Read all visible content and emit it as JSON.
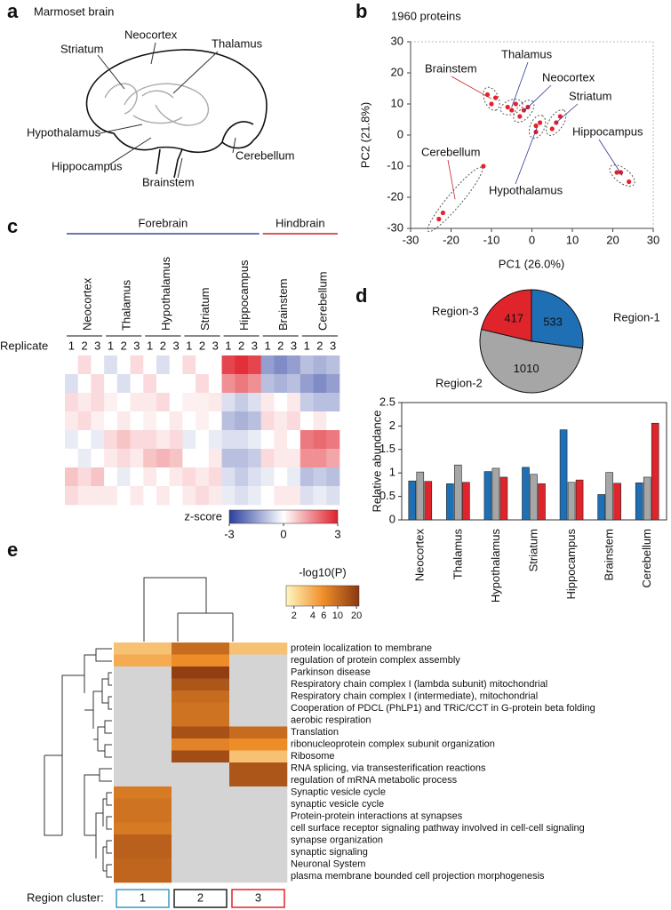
{
  "panel_labels": [
    "a",
    "b",
    "c",
    "d",
    "e"
  ],
  "diagram": {
    "title": "Marmoset brain",
    "labels": [
      "Striatum",
      "Neocortex",
      "Thalamus",
      "Hypothalamus",
      "Hippocampus",
      "Brainstem",
      "Cerebellum"
    ]
  },
  "chart_data": [
    {
      "type": "scatter",
      "title": "1960 proteins",
      "x_label": "PC1 (26.0%)",
      "y_label": "PC2 (21.8%)",
      "xlim": [
        -30,
        30
      ],
      "ylim": [
        -30,
        30
      ],
      "xticks": [
        -30,
        -20,
        -10,
        0,
        10,
        20,
        30
      ],
      "yticks": [
        -30,
        -20,
        -10,
        0,
        10,
        20,
        30
      ],
      "point_color": "#e8202a",
      "series": [
        {
          "name": "Brainstem",
          "color": "#c8242b",
          "x": [
            -11,
            -10,
            -9
          ],
          "y": [
            13,
            10,
            12
          ]
        },
        {
          "name": "Thalamus",
          "color": "#2e3a96",
          "x": [
            -6,
            -4,
            -5
          ],
          "y": [
            9,
            10,
            8
          ]
        },
        {
          "name": "Neocortex",
          "color": "#2e3a96",
          "x": [
            -3,
            -1,
            -2
          ],
          "y": [
            6,
            9,
            8
          ]
        },
        {
          "name": "Striatum",
          "color": "#2e3a96",
          "x": [
            5,
            6,
            7
          ],
          "y": [
            2,
            4,
            6
          ]
        },
        {
          "name": "Hippocampus",
          "color": "#2e3a96",
          "x": [
            21,
            22,
            24
          ],
          "y": [
            -12,
            -12,
            -15
          ]
        },
        {
          "name": "Hypothalamus",
          "color": "#2e3a96",
          "x": [
            1,
            1,
            2
          ],
          "y": [
            1,
            3,
            4
          ]
        },
        {
          "name": "Cerebellum",
          "color": "#c8242b",
          "x": [
            -23,
            -22,
            -12
          ],
          "y": [
            -27,
            -25,
            -10
          ]
        }
      ]
    },
    {
      "type": "heatmap",
      "group_labels": [
        "Forebrain",
        "Hindbrain"
      ],
      "group_colors": [
        "#3b4aa0",
        "#c8242b"
      ],
      "categories": [
        "Neocortex",
        "Thalamus",
        "Hypothalamus",
        "Striatum",
        "Hippocampus",
        "Brainstem",
        "Cerebellum"
      ],
      "replicate_label": "Replicate",
      "replicates": [
        "1",
        "2",
        "3"
      ],
      "colorbar_label": "z-score",
      "clim": [
        -3,
        3
      ],
      "cticks": [
        -3,
        0,
        3
      ],
      "colors": [
        "#2a3f9e",
        "#ffffff",
        "#e0202a"
      ],
      "values": [
        [
          0,
          0.5,
          0,
          -0.5,
          0,
          0.5,
          0,
          -0.5,
          0,
          0.5,
          0,
          0,
          2.5,
          2.8,
          2.5,
          -1.5,
          -1.8,
          -1.5,
          -1,
          -1.2,
          -1
        ],
        [
          -0.5,
          0,
          0.5,
          0,
          -0.5,
          0,
          0.5,
          0,
          0,
          0,
          0.5,
          0,
          1.5,
          1.8,
          1.5,
          -1,
          -1.2,
          -1,
          -1.5,
          -1.8,
          -1.5
        ],
        [
          0.5,
          0.3,
          0.5,
          0.2,
          0,
          0.3,
          0.3,
          0.5,
          0,
          0.2,
          0.2,
          0.3,
          -0.5,
          -0.8,
          -0.5,
          0.3,
          0,
          0.3,
          -0.8,
          -1,
          -1
        ],
        [
          0.3,
          0.5,
          0.2,
          0,
          0.3,
          0,
          0.2,
          0,
          0.3,
          0,
          0.2,
          0,
          -1,
          -1.2,
          -1,
          0.5,
          0.3,
          0.5,
          0,
          0.3,
          0
        ],
        [
          -0.3,
          0,
          -0.3,
          0.5,
          0.8,
          0.5,
          0.5,
          0.3,
          0.5,
          -0.3,
          0,
          -0.3,
          -0.5,
          -0.5,
          -0.3,
          0,
          0.3,
          0,
          1.8,
          2,
          1.8
        ],
        [
          0,
          -0.3,
          0,
          0.3,
          0.5,
          0.3,
          0.8,
          1,
          0.8,
          0,
          0,
          0.3,
          -1,
          -1,
          -0.8,
          0.5,
          0.3,
          0.3,
          1.5,
          1.5,
          1.2
        ],
        [
          0.8,
          0.5,
          0.8,
          0,
          -0.3,
          0,
          0.3,
          0,
          0.3,
          0.5,
          0.3,
          0.5,
          -0.5,
          -0.8,
          -0.5,
          -0.3,
          0,
          -0.3,
          -1,
          -0.8,
          -1
        ],
        [
          0.5,
          0.3,
          0.3,
          0.3,
          0,
          0.3,
          0,
          0.3,
          0,
          0.3,
          0.5,
          0.3,
          -0.3,
          -0.5,
          -0.3,
          0,
          0.3,
          0.3,
          -0.5,
          -0.3,
          -0.5
        ]
      ]
    },
    {
      "type": "pie",
      "categories": [
        "Region-1",
        "Region-2",
        "Region-3"
      ],
      "values": [
        533,
        1010,
        417
      ],
      "colors": [
        "#1f6fb4",
        "#a6a6a6",
        "#e0242b"
      ]
    },
    {
      "type": "bar",
      "y_label": "Relative abundance",
      "categories": [
        "Neocortex",
        "Thalamus",
        "Hypothalamus",
        "Striatum",
        "Hippocampus",
        "Brainstem",
        "Cerebellum"
      ],
      "ylim": [
        0,
        2.5
      ],
      "yticks": [
        0,
        0.5,
        1,
        1.5,
        2,
        2.5
      ],
      "series": [
        {
          "color": "#1f6fb4",
          "values": [
            0.83,
            0.77,
            1.03,
            1.12,
            1.92,
            0.54,
            0.79
          ]
        },
        {
          "color": "#a6a6a6",
          "values": [
            1.02,
            1.17,
            1.1,
            0.97,
            0.8,
            1.01,
            0.91
          ]
        },
        {
          "color": "#e0242b",
          "values": [
            0.82,
            0.8,
            0.91,
            0.77,
            0.85,
            0.78,
            2.06
          ]
        }
      ]
    },
    {
      "type": "matrix",
      "title": "-log10(P)",
      "log": true,
      "clim": [
        1.5,
        22
      ],
      "cticks": [
        2,
        4,
        6,
        10,
        20
      ],
      "colors": [
        "#fff6c0",
        "#f0902a",
        "#8a3810"
      ],
      "missing_color": "#d4d4d4",
      "x_label": "Region cluster:",
      "columns": [
        "1",
        "2",
        "3"
      ],
      "column_colors": [
        "#3a9ac8",
        "#222222",
        "#e0242b"
      ],
      "categories": [
        "protein localization to membrane",
        "regulation of protein complex assembly",
        "Parkinson disease",
        "Respiratory chain complex I (lambda subunit) mitochondrial",
        "Respiratory chain complex I (intermediate), mitochondrial",
        "Cooperation of PDCL (PhLP1) and TRiC/CCT in G-protein beta folding",
        "aerobic respiration",
        "Translation",
        "ribonucleoprotein complex subunit organization",
        "Ribosome",
        "RNA splicing, via transesterification reactions",
        "regulation of mRNA metabolic process",
        "Synaptic vesicle cycle",
        "synaptic vesicle cycle",
        "Protein-protein interactions at synapses",
        "cell surface receptor signaling pathway involved in cell-cell signaling",
        "synapse organization",
        "synaptic signaling",
        "Neuronal System",
        "plasma membrane bounded cell projection morphogenesis"
      ],
      "values": [
        [
          3,
          10,
          3
        ],
        [
          4,
          6,
          null
        ],
        [
          null,
          20,
          null
        ],
        [
          null,
          14,
          null
        ],
        [
          null,
          10,
          null
        ],
        [
          null,
          9,
          null
        ],
        [
          null,
          9,
          null
        ],
        [
          null,
          15,
          10
        ],
        [
          null,
          7,
          6
        ],
        [
          null,
          16,
          3
        ],
        [
          null,
          null,
          14
        ],
        [
          null,
          null,
          14
        ],
        [
          8,
          null,
          null
        ],
        [
          9,
          null,
          null
        ],
        [
          9,
          null,
          null
        ],
        [
          8,
          null,
          null
        ],
        [
          12,
          null,
          null
        ],
        [
          12,
          null,
          null
        ],
        [
          11,
          null,
          null
        ],
        [
          11,
          null,
          null
        ]
      ]
    }
  ]
}
